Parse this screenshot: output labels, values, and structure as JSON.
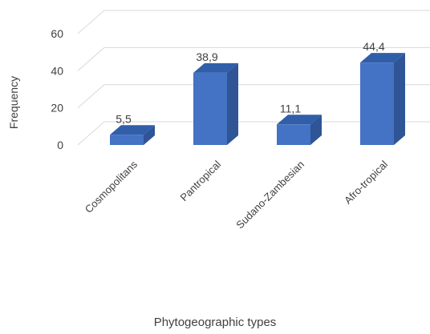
{
  "chart_data": {
    "type": "bar",
    "categories": [
      "Cosmopolitans",
      "Pantropical",
      "Sudano-Zambesian",
      "Afro-tropical"
    ],
    "values": [
      5.5,
      38.9,
      11.1,
      44.4
    ],
    "data_labels": [
      "5,5",
      "38,9",
      "11,1",
      "44,4"
    ],
    "xlabel": "Phytogeographic types",
    "ylabel": "Frequency",
    "ylim": [
      0,
      60
    ],
    "yticks": [
      0,
      20,
      40,
      60
    ],
    "grid": true,
    "legend": "none",
    "colors": {
      "face": "#4472c4",
      "side": "#2f5597",
      "top": "#305ea8",
      "grid": "#d9d9d9",
      "text": "#404040"
    }
  }
}
